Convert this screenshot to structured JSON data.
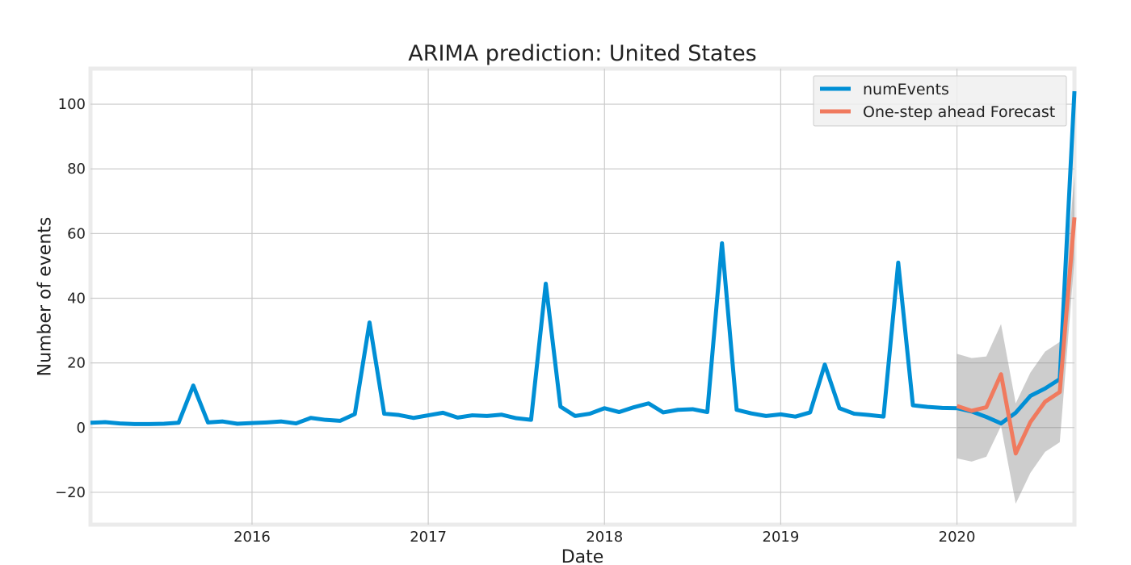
{
  "chart_data": {
    "type": "line",
    "title": "ARIMA prediction: United States",
    "xlabel": "Date",
    "ylabel": "Number of events",
    "x_start": "2015-02",
    "x_end": "2020-09",
    "xlim": [
      "2015-02",
      "2020-09"
    ],
    "ylim": [
      -30,
      111
    ],
    "xticks": [
      {
        "date": "2016-01",
        "label": "2016"
      },
      {
        "date": "2017-01",
        "label": "2017"
      },
      {
        "date": "2018-01",
        "label": "2018"
      },
      {
        "date": "2019-01",
        "label": "2019"
      },
      {
        "date": "2020-01",
        "label": "2020"
      }
    ],
    "yticks": [
      {
        "value": -20,
        "label": "−20"
      },
      {
        "value": 0,
        "label": "0"
      },
      {
        "value": 20,
        "label": "20"
      },
      {
        "value": 40,
        "label": "40"
      },
      {
        "value": 60,
        "label": "60"
      },
      {
        "value": 80,
        "label": "80"
      },
      {
        "value": 100,
        "label": "100"
      }
    ],
    "grid": true,
    "legend_position": "top-right",
    "series": [
      {
        "name": "numEvents",
        "color": "#008fd5",
        "points": [
          [
            "2015-02",
            1.5
          ],
          [
            "2015-03",
            1.7
          ],
          [
            "2015-04",
            1.3
          ],
          [
            "2015-05",
            1.1
          ],
          [
            "2015-06",
            1.1
          ],
          [
            "2015-07",
            1.2
          ],
          [
            "2015-08",
            1.5
          ],
          [
            "2015-09",
            13.0
          ],
          [
            "2015-10",
            1.6
          ],
          [
            "2015-11",
            1.9
          ],
          [
            "2015-12",
            1.2
          ],
          [
            "2016-01",
            1.4
          ],
          [
            "2016-02",
            1.6
          ],
          [
            "2016-03",
            1.9
          ],
          [
            "2016-04",
            1.3
          ],
          [
            "2016-05",
            3.0
          ],
          [
            "2016-06",
            2.4
          ],
          [
            "2016-07",
            2.1
          ],
          [
            "2016-08",
            4.2
          ],
          [
            "2016-09",
            32.5
          ],
          [
            "2016-10",
            4.3
          ],
          [
            "2016-11",
            3.9
          ],
          [
            "2016-12",
            3.0
          ],
          [
            "2017-01",
            3.8
          ],
          [
            "2017-02",
            4.6
          ],
          [
            "2017-03",
            3.1
          ],
          [
            "2017-04",
            3.8
          ],
          [
            "2017-05",
            3.6
          ],
          [
            "2017-06",
            4.0
          ],
          [
            "2017-07",
            2.9
          ],
          [
            "2017-08",
            2.4
          ],
          [
            "2017-09",
            44.5
          ],
          [
            "2017-10",
            6.5
          ],
          [
            "2017-11",
            3.6
          ],
          [
            "2017-12",
            4.3
          ],
          [
            "2018-01",
            6.0
          ],
          [
            "2018-02",
            4.8
          ],
          [
            "2018-03",
            6.3
          ],
          [
            "2018-04",
            7.5
          ],
          [
            "2018-05",
            4.7
          ],
          [
            "2018-06",
            5.5
          ],
          [
            "2018-07",
            5.7
          ],
          [
            "2018-08",
            4.8
          ],
          [
            "2018-09",
            57.0
          ],
          [
            "2018-10",
            5.5
          ],
          [
            "2018-11",
            4.4
          ],
          [
            "2018-12",
            3.6
          ],
          [
            "2019-01",
            4.1
          ],
          [
            "2019-02",
            3.4
          ],
          [
            "2019-03",
            4.7
          ],
          [
            "2019-04",
            19.5
          ],
          [
            "2019-05",
            6.0
          ],
          [
            "2019-06",
            4.3
          ],
          [
            "2019-07",
            3.9
          ],
          [
            "2019-08",
            3.4
          ],
          [
            "2019-09",
            51.0
          ],
          [
            "2019-10",
            6.9
          ],
          [
            "2019-11",
            6.4
          ],
          [
            "2019-12",
            6.1
          ],
          [
            "2020-01",
            6.0
          ],
          [
            "2020-02",
            5.0
          ],
          [
            "2020-03",
            3.3
          ],
          [
            "2020-04",
            1.3
          ],
          [
            "2020-05",
            4.6
          ],
          [
            "2020-06",
            9.8
          ],
          [
            "2020-07",
            12.1
          ],
          [
            "2020-08",
            15.0
          ],
          [
            "2020-09",
            104.0
          ]
        ]
      },
      {
        "name": "One-step ahead Forecast",
        "color": "#f07a5e",
        "points": [
          [
            "2020-01",
            6.7
          ],
          [
            "2020-02",
            5.2
          ],
          [
            "2020-03",
            6.3
          ],
          [
            "2020-04",
            16.5
          ],
          [
            "2020-05",
            -8.0
          ],
          [
            "2020-06",
            1.7
          ],
          [
            "2020-07",
            8.0
          ],
          [
            "2020-08",
            11.0
          ],
          [
            "2020-09",
            65.0
          ]
        ]
      }
    ],
    "confidence_interval": {
      "color": "#888888",
      "points": [
        [
          "2020-01",
          -9.5,
          22.8
        ],
        [
          "2020-02",
          -10.5,
          21.5
        ],
        [
          "2020-03",
          -9.0,
          22.0
        ],
        [
          "2020-04",
          0.5,
          32.0
        ],
        [
          "2020-05",
          -23.5,
          7.5
        ],
        [
          "2020-06",
          -14.0,
          17.0
        ],
        [
          "2020-07",
          -7.5,
          23.5
        ],
        [
          "2020-08",
          -4.5,
          26.5
        ],
        [
          "2020-09",
          52.0,
          78.0
        ]
      ]
    }
  }
}
